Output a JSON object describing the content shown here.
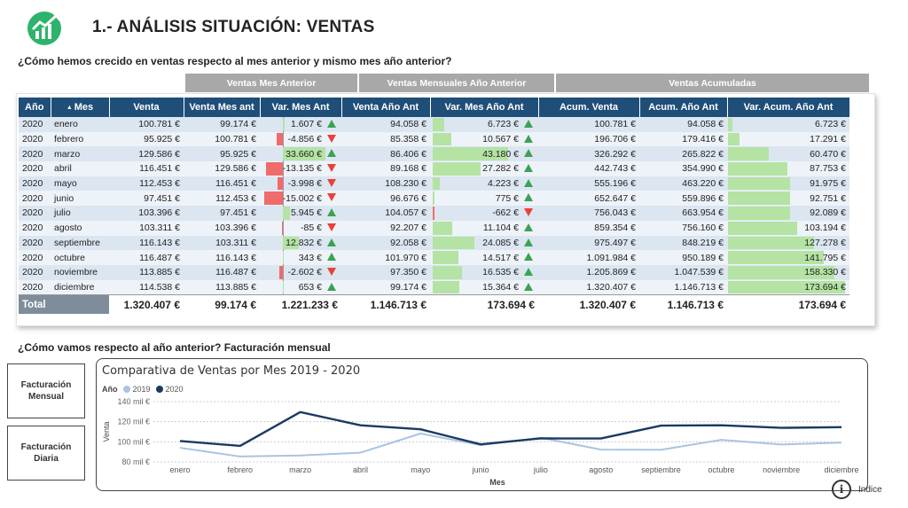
{
  "header": {
    "title": "1.- ANÁLISIS SITUACIÓN: VENTAS"
  },
  "questions": {
    "q1": "¿Cómo hemos crecido en ventas respecto al mes anterior y mismo mes año anterior?",
    "q2": "¿Cómo vamos respecto al año anterior? Facturación mensual"
  },
  "table": {
    "groups": [
      "Ventas Mes Anterior",
      "Ventas Mensuales Año Anterior",
      "Ventas Acumuladas"
    ],
    "columns": [
      "Año",
      "Mes",
      "Venta",
      "Venta Mes ant",
      "Var. Mes Ant",
      "Venta Año Ant",
      "Var. Mes Año Ant",
      "Acum. Venta",
      "Acum. Año Ant",
      "Var. Acum. Año Ant"
    ],
    "rows": [
      {
        "year": "2020",
        "month": "enero",
        "venta": "100.781 €",
        "venta_mes_ant": "99.174 €",
        "var_mes_ant": "1.607 €",
        "var_mes_ant_num": 1607,
        "venta_ano_ant": "94.058 €",
        "var_ano_ant": "6.723 €",
        "var_ano_ant_num": 6723,
        "acum_venta": "100.781 €",
        "acum_ano_ant": "94.058 €",
        "var_acum": "6.723 €",
        "var_acum_num": 6723
      },
      {
        "year": "2020",
        "month": "febrero",
        "venta": "95.925 €",
        "venta_mes_ant": "100.781 €",
        "var_mes_ant": "-4.856 €",
        "var_mes_ant_num": -4856,
        "venta_ano_ant": "85.358 €",
        "var_ano_ant": "10.567 €",
        "var_ano_ant_num": 10567,
        "acum_venta": "196.706 €",
        "acum_ano_ant": "179.416 €",
        "var_acum": "17.291 €",
        "var_acum_num": 17291
      },
      {
        "year": "2020",
        "month": "marzo",
        "venta": "129.586 €",
        "venta_mes_ant": "95.925 €",
        "var_mes_ant": "33.660 €",
        "var_mes_ant_num": 33660,
        "venta_ano_ant": "86.406 €",
        "var_ano_ant": "43.180 €",
        "var_ano_ant_num": 43180,
        "acum_venta": "326.292 €",
        "acum_ano_ant": "265.822 €",
        "var_acum": "60.470 €",
        "var_acum_num": 60470
      },
      {
        "year": "2020",
        "month": "abril",
        "venta": "116.451 €",
        "venta_mes_ant": "129.586 €",
        "var_mes_ant": "-13.135 €",
        "var_mes_ant_num": -13135,
        "venta_ano_ant": "89.168 €",
        "var_ano_ant": "27.282 €",
        "var_ano_ant_num": 27282,
        "acum_venta": "442.743 €",
        "acum_ano_ant": "354.990 €",
        "var_acum": "87.753 €",
        "var_acum_num": 87753
      },
      {
        "year": "2020",
        "month": "mayo",
        "venta": "112.453 €",
        "venta_mes_ant": "116.451 €",
        "var_mes_ant": "-3.998 €",
        "var_mes_ant_num": -3998,
        "venta_ano_ant": "108.230 €",
        "var_ano_ant": "4.223 €",
        "var_ano_ant_num": 4223,
        "acum_venta": "555.196 €",
        "acum_ano_ant": "463.220 €",
        "var_acum": "91.975 €",
        "var_acum_num": 91975
      },
      {
        "year": "2020",
        "month": "junio",
        "venta": "97.451 €",
        "venta_mes_ant": "112.453 €",
        "var_mes_ant": "-15.002 €",
        "var_mes_ant_num": -15002,
        "venta_ano_ant": "96.676 €",
        "var_ano_ant": "775 €",
        "var_ano_ant_num": 775,
        "acum_venta": "652.647 €",
        "acum_ano_ant": "559.896 €",
        "var_acum": "92.751 €",
        "var_acum_num": 92751
      },
      {
        "year": "2020",
        "month": "julio",
        "venta": "103.396 €",
        "venta_mes_ant": "97.451 €",
        "var_mes_ant": "5.945 €",
        "var_mes_ant_num": 5945,
        "venta_ano_ant": "104.057 €",
        "var_ano_ant": "-662 €",
        "var_ano_ant_num": -662,
        "acum_venta": "756.043 €",
        "acum_ano_ant": "663.954 €",
        "var_acum": "92.089 €",
        "var_acum_num": 92089
      },
      {
        "year": "2020",
        "month": "agosto",
        "venta": "103.311 €",
        "venta_mes_ant": "103.396 €",
        "var_mes_ant": "-85 €",
        "var_mes_ant_num": -85,
        "venta_ano_ant": "92.207 €",
        "var_ano_ant": "11.104 €",
        "var_ano_ant_num": 11104,
        "acum_venta": "859.354 €",
        "acum_ano_ant": "756.160 €",
        "var_acum": "103.194 €",
        "var_acum_num": 103194
      },
      {
        "year": "2020",
        "month": "septiembre",
        "venta": "116.143 €",
        "venta_mes_ant": "103.311 €",
        "var_mes_ant": "12.832 €",
        "var_mes_ant_num": 12832,
        "venta_ano_ant": "92.058 €",
        "var_ano_ant": "24.085 €",
        "var_ano_ant_num": 24085,
        "acum_venta": "975.497 €",
        "acum_ano_ant": "848.219 €",
        "var_acum": "127.278 €",
        "var_acum_num": 127278
      },
      {
        "year": "2020",
        "month": "octubre",
        "venta": "116.487 €",
        "venta_mes_ant": "116.143 €",
        "var_mes_ant": "343 €",
        "var_mes_ant_num": 343,
        "venta_ano_ant": "101.970 €",
        "var_ano_ant": "14.517 €",
        "var_ano_ant_num": 14517,
        "acum_venta": "1.091.984 €",
        "acum_ano_ant": "950.189 €",
        "var_acum": "141.795 €",
        "var_acum_num": 141795
      },
      {
        "year": "2020",
        "month": "noviembre",
        "venta": "113.885 €",
        "venta_mes_ant": "116.487 €",
        "var_mes_ant": "-2.602 €",
        "var_mes_ant_num": -2602,
        "venta_ano_ant": "97.350 €",
        "var_ano_ant": "16.535 €",
        "var_ano_ant_num": 16535,
        "acum_venta": "1.205.869 €",
        "acum_ano_ant": "1.047.539 €",
        "var_acum": "158.330 €",
        "var_acum_num": 158330
      },
      {
        "year": "2020",
        "month": "diciembre",
        "venta": "114.538 €",
        "venta_mes_ant": "113.885 €",
        "var_mes_ant": "653 €",
        "var_mes_ant_num": 653,
        "venta_ano_ant": "99.174 €",
        "var_ano_ant": "15.364 €",
        "var_ano_ant_num": 15364,
        "acum_venta": "1.320.407 €",
        "acum_ano_ant": "1.146.713 €",
        "var_acum": "173.694 €",
        "var_acum_num": 173694
      }
    ],
    "totals": {
      "label": "Total",
      "venta": "1.320.407 €",
      "venta_mes_ant": "99.174 €",
      "var_mes_ant": "1.221.233 €",
      "venta_ano_ant": "1.146.713 €",
      "var_ano_ant": "173.694 €",
      "acum_venta": "1.320.407 €",
      "acum_ano_ant": "1.146.713 €",
      "var_acum": "173.694 €"
    }
  },
  "buttons": {
    "mensual": "Facturación Mensual",
    "diaria": "Facturación Diaria"
  },
  "chart_data": {
    "type": "line",
    "title": "Comparativa de Ventas por Mes 2019 - 2020",
    "legend_title": "Año",
    "xlabel": "Mes",
    "ylabel": "Venta",
    "categories": [
      "enero",
      "febrero",
      "marzo",
      "abril",
      "mayo",
      "junio",
      "julio",
      "agosto",
      "septiembre",
      "octubre",
      "noviembre",
      "diciembre"
    ],
    "y_ticks": [
      "80 mil €",
      "100 mil €",
      "120 mil €",
      "140 mil €"
    ],
    "y_tick_values": [
      80000,
      100000,
      120000,
      140000
    ],
    "ylim": [
      80000,
      140000
    ],
    "series": [
      {
        "name": "2019",
        "color": "#a9c4e0",
        "values": [
          94058,
          85358,
          86406,
          89168,
          108230,
          96676,
          104057,
          92207,
          92058,
          101970,
          97350,
          99174
        ]
      },
      {
        "name": "2020",
        "color": "#1a3a63",
        "values": [
          100781,
          95925,
          129586,
          116451,
          112453,
          97451,
          103396,
          103311,
          116143,
          116487,
          113885,
          114538
        ]
      }
    ],
    "grid": true,
    "legend_position": "top-left"
  },
  "footer": {
    "info_label": "Indice",
    "info_glyph": "i"
  }
}
